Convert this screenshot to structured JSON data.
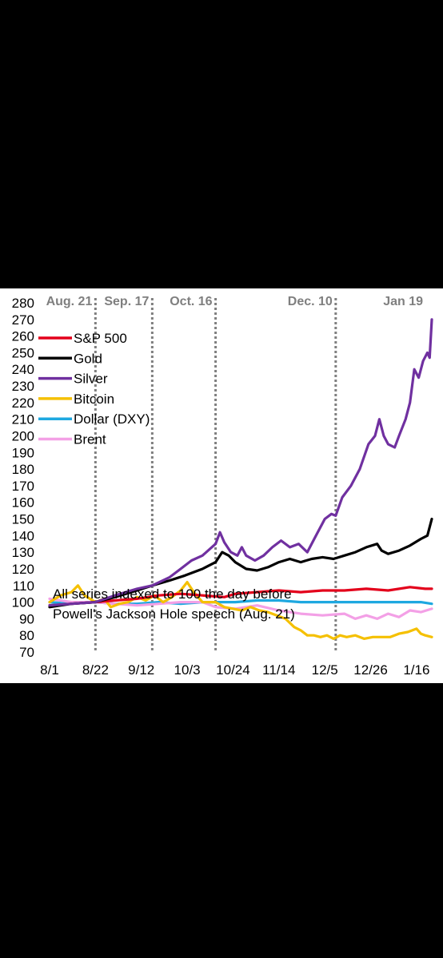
{
  "chart_data": {
    "type": "line",
    "ylim": [
      70,
      280
    ],
    "yticks": [
      70,
      80,
      90,
      100,
      110,
      120,
      130,
      140,
      150,
      160,
      170,
      180,
      190,
      200,
      210,
      220,
      230,
      240,
      250,
      260,
      270,
      280
    ],
    "xticks": [
      "8/1",
      "8/22",
      "9/12",
      "10/3",
      "10/24",
      "11/14",
      "12/5",
      "12/26",
      "1/16"
    ],
    "events": [
      {
        "label": "Aug. 21",
        "x": 21
      },
      {
        "label": "Sep. 17",
        "x": 47
      },
      {
        "label": "Oct. 16",
        "x": 76
      },
      {
        "label": "Dec. 10",
        "x": 131
      }
    ],
    "end_label": {
      "label": "Jan 19",
      "color": "#7030a0"
    },
    "annotation": [
      "All series indexed to 100 the day before",
      "Powell's Jackson Hole speech (Aug. 21)"
    ],
    "series": [
      {
        "name": "S&P 500",
        "color": "#e3001b",
        "points": [
          [
            0,
            98
          ],
          [
            10,
            99
          ],
          [
            21,
            100
          ],
          [
            30,
            101
          ],
          [
            40,
            102
          ],
          [
            50,
            104
          ],
          [
            60,
            105
          ],
          [
            70,
            104
          ],
          [
            80,
            103
          ],
          [
            85,
            105
          ],
          [
            95,
            106
          ],
          [
            105,
            107
          ],
          [
            115,
            106
          ],
          [
            125,
            107
          ],
          [
            135,
            107
          ],
          [
            145,
            108
          ],
          [
            155,
            107
          ],
          [
            165,
            109
          ],
          [
            172,
            108
          ],
          [
            175,
            108
          ]
        ]
      },
      {
        "name": "Gold",
        "color": "#000000",
        "points": [
          [
            0,
            97
          ],
          [
            10,
            99
          ],
          [
            21,
            100
          ],
          [
            30,
            103
          ],
          [
            40,
            107
          ],
          [
            47,
            110
          ],
          [
            55,
            113
          ],
          [
            62,
            116
          ],
          [
            70,
            120
          ],
          [
            76,
            124
          ],
          [
            79,
            130
          ],
          [
            82,
            128
          ],
          [
            85,
            124
          ],
          [
            90,
            120
          ],
          [
            95,
            119
          ],
          [
            100,
            121
          ],
          [
            105,
            124
          ],
          [
            110,
            126
          ],
          [
            115,
            124
          ],
          [
            120,
            126
          ],
          [
            125,
            127
          ],
          [
            130,
            126
          ],
          [
            135,
            128
          ],
          [
            140,
            130
          ],
          [
            145,
            133
          ],
          [
            150,
            135
          ],
          [
            152,
            131
          ],
          [
            155,
            129
          ],
          [
            160,
            131
          ],
          [
            165,
            134
          ],
          [
            170,
            138
          ],
          [
            173,
            140
          ],
          [
            175,
            150
          ]
        ]
      },
      {
        "name": "Silver",
        "color": "#7030a0",
        "points": [
          [
            0,
            98
          ],
          [
            10,
            99
          ],
          [
            21,
            100
          ],
          [
            30,
            104
          ],
          [
            40,
            108
          ],
          [
            47,
            110
          ],
          [
            55,
            115
          ],
          [
            60,
            120
          ],
          [
            65,
            125
          ],
          [
            70,
            128
          ],
          [
            76,
            135
          ],
          [
            78,
            142
          ],
          [
            80,
            136
          ],
          [
            83,
            130
          ],
          [
            86,
            128
          ],
          [
            88,
            133
          ],
          [
            90,
            128
          ],
          [
            94,
            125
          ],
          [
            98,
            128
          ],
          [
            102,
            133
          ],
          [
            106,
            137
          ],
          [
            110,
            133
          ],
          [
            114,
            135
          ],
          [
            118,
            130
          ],
          [
            122,
            140
          ],
          [
            126,
            150
          ],
          [
            129,
            153
          ],
          [
            131,
            152
          ],
          [
            134,
            163
          ],
          [
            138,
            170
          ],
          [
            142,
            180
          ],
          [
            146,
            195
          ],
          [
            149,
            200
          ],
          [
            151,
            210
          ],
          [
            153,
            200
          ],
          [
            155,
            195
          ],
          [
            158,
            193
          ],
          [
            160,
            200
          ],
          [
            163,
            210
          ],
          [
            165,
            220
          ],
          [
            167,
            240
          ],
          [
            169,
            235
          ],
          [
            171,
            245
          ],
          [
            173,
            250
          ],
          [
            174,
            247
          ],
          [
            175,
            270
          ]
        ]
      },
      {
        "name": "Bitcoin",
        "color": "#f5c000",
        "points": [
          [
            0,
            100
          ],
          [
            5,
            104
          ],
          [
            10,
            106
          ],
          [
            13,
            110
          ],
          [
            16,
            104
          ],
          [
            21,
            100
          ],
          [
            25,
            102
          ],
          [
            28,
            97
          ],
          [
            32,
            99
          ],
          [
            36,
            100
          ],
          [
            40,
            103
          ],
          [
            44,
            101
          ],
          [
            48,
            104
          ],
          [
            52,
            100
          ],
          [
            56,
            103
          ],
          [
            60,
            107
          ],
          [
            63,
            112
          ],
          [
            66,
            106
          ],
          [
            70,
            100
          ],
          [
            76,
            100
          ],
          [
            80,
            97
          ],
          [
            84,
            96
          ],
          [
            88,
            95
          ],
          [
            92,
            97
          ],
          [
            96,
            95
          ],
          [
            100,
            94
          ],
          [
            104,
            92
          ],
          [
            108,
            90
          ],
          [
            112,
            85
          ],
          [
            115,
            83
          ],
          [
            118,
            80
          ],
          [
            121,
            80
          ],
          [
            124,
            79
          ],
          [
            127,
            80
          ],
          [
            130,
            78
          ],
          [
            133,
            80
          ],
          [
            136,
            79
          ],
          [
            140,
            80
          ],
          [
            144,
            78
          ],
          [
            148,
            79
          ],
          [
            152,
            79
          ],
          [
            156,
            79
          ],
          [
            160,
            81
          ],
          [
            164,
            82
          ],
          [
            168,
            84
          ],
          [
            170,
            81
          ],
          [
            172,
            80
          ],
          [
            175,
            79
          ]
        ]
      },
      {
        "name": "Dollar (DXY)",
        "color": "#1ea8e0",
        "points": [
          [
            0,
            100
          ],
          [
            10,
            99
          ],
          [
            21,
            100
          ],
          [
            30,
            99
          ],
          [
            40,
            99
          ],
          [
            50,
            100
          ],
          [
            60,
            99
          ],
          [
            70,
            100
          ],
          [
            76,
            100
          ],
          [
            85,
            100
          ],
          [
            95,
            101
          ],
          [
            105,
            101
          ],
          [
            115,
            100
          ],
          [
            125,
            100
          ],
          [
            135,
            100
          ],
          [
            145,
            100
          ],
          [
            155,
            100
          ],
          [
            165,
            100
          ],
          [
            170,
            100
          ],
          [
            175,
            99
          ]
        ]
      },
      {
        "name": "Brent",
        "color": "#f3a0e6",
        "points": [
          [
            0,
            102
          ],
          [
            10,
            100
          ],
          [
            21,
            100
          ],
          [
            30,
            99
          ],
          [
            40,
            98
          ],
          [
            50,
            99
          ],
          [
            60,
            100
          ],
          [
            70,
            100
          ],
          [
            76,
            97
          ],
          [
            85,
            96
          ],
          [
            95,
            98
          ],
          [
            105,
            95
          ],
          [
            115,
            93
          ],
          [
            125,
            92
          ],
          [
            135,
            93
          ],
          [
            140,
            90
          ],
          [
            145,
            92
          ],
          [
            150,
            90
          ],
          [
            155,
            93
          ],
          [
            160,
            91
          ],
          [
            165,
            95
          ],
          [
            170,
            94
          ],
          [
            175,
            96
          ]
        ]
      }
    ]
  }
}
